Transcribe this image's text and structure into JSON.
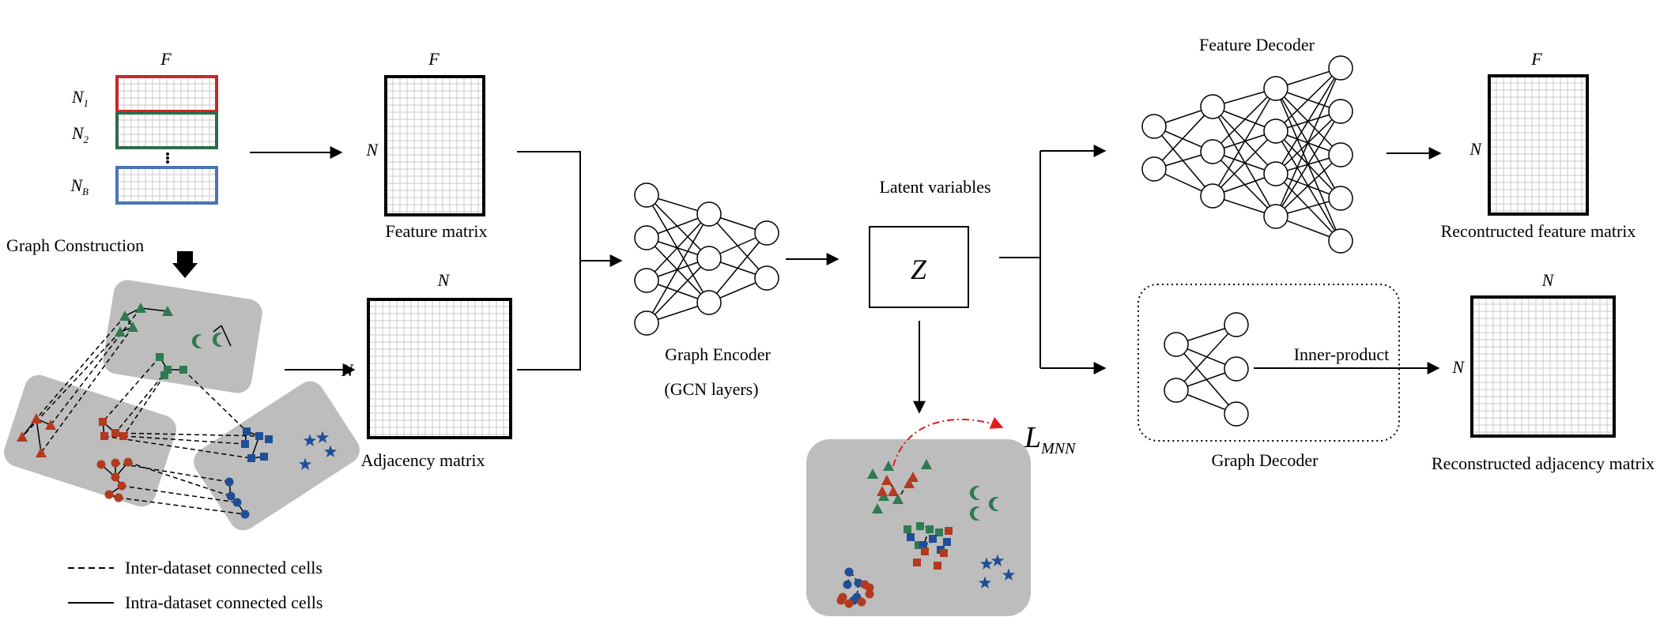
{
  "input": {
    "top_label": "F",
    "row_labels": {
      "n1_main": "N",
      "n1_sub": "1",
      "n2_main": "N",
      "n2_sub": "2",
      "nb_main": "N",
      "nb_sub": "B"
    },
    "colors": {
      "n1": "#c62828",
      "n2": "#2e6b4a",
      "nb": "#4a74b5"
    }
  },
  "graph_construction": {
    "label": "Graph Construction"
  },
  "feature_matrix": {
    "top_label": "F",
    "side_label": "N",
    "caption": "Feature matrix"
  },
  "adjacency_matrix": {
    "top_label": "N",
    "side_label": "N",
    "caption": "Adjacency matrix"
  },
  "encoder": {
    "caption_line1": "Graph Encoder",
    "caption_line2": "(GCN layers)"
  },
  "latent": {
    "title": "Latent variables",
    "symbol": "Z"
  },
  "loss": {
    "symbol": "L",
    "subscript": "MNN"
  },
  "feature_decoder": {
    "title": "Feature Decoder"
  },
  "graph_decoder": {
    "caption": "Graph Decoder",
    "operation": "Inner-product"
  },
  "recon_feature": {
    "top_label": "F",
    "side_label": "N",
    "caption": "Recontructed  feature matrix"
  },
  "recon_adjacency": {
    "top_label": "N",
    "side_label": "N",
    "caption": "Reconstructed adjacency matrix"
  },
  "legend": {
    "inter": "Inter-dataset connected cells",
    "intra": "Intra-dataset connected cells"
  },
  "palette": {
    "red": "#b23a1f",
    "green": "#2e7a52",
    "blue": "#1f4e96",
    "panel_gray": "#bdbdbd"
  }
}
